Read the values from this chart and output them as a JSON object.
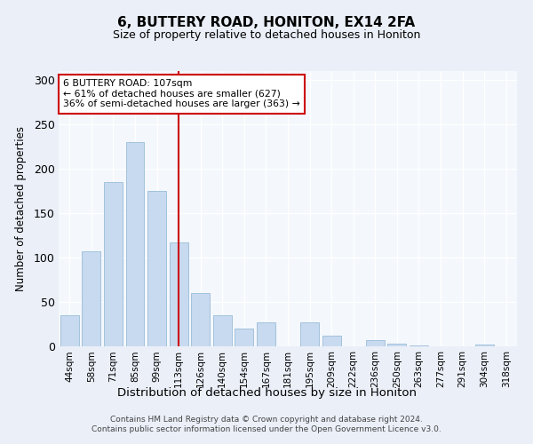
{
  "title1": "6, BUTTERY ROAD, HONITON, EX14 2FA",
  "title2": "Size of property relative to detached houses in Honiton",
  "xlabel": "Distribution of detached houses by size in Honiton",
  "ylabel": "Number of detached properties",
  "categories": [
    "44sqm",
    "58sqm",
    "71sqm",
    "85sqm",
    "99sqm",
    "113sqm",
    "126sqm",
    "140sqm",
    "154sqm",
    "167sqm",
    "181sqm",
    "195sqm",
    "209sqm",
    "222sqm",
    "236sqm",
    "250sqm",
    "263sqm",
    "277sqm",
    "291sqm",
    "304sqm",
    "318sqm"
  ],
  "values": [
    35,
    107,
    185,
    230,
    175,
    117,
    60,
    35,
    20,
    27,
    0,
    27,
    12,
    0,
    7,
    3,
    1,
    0,
    0,
    2,
    0
  ],
  "bar_color": "#c8daf0",
  "bar_edge_color": "#9abcd8",
  "marker_label": "6 BUTTERY ROAD: 107sqm",
  "marker_pct1": "← 61% of detached houses are smaller (627)",
  "marker_pct2": "36% of semi-detached houses are larger (363) →",
  "annotation_box_color": "#ffffff",
  "annotation_border_color": "#cc0000",
  "vline_color": "#cc0000",
  "footer1": "Contains HM Land Registry data © Crown copyright and database right 2024.",
  "footer2": "Contains public sector information licensed under the Open Government Licence v3.0.",
  "ylim": [
    0,
    310
  ],
  "yticks": [
    0,
    50,
    100,
    150,
    200,
    250,
    300
  ],
  "bg_color": "#eaeff8",
  "plot_bg_color": "#f4f7fc",
  "vline_x_index": 5
}
